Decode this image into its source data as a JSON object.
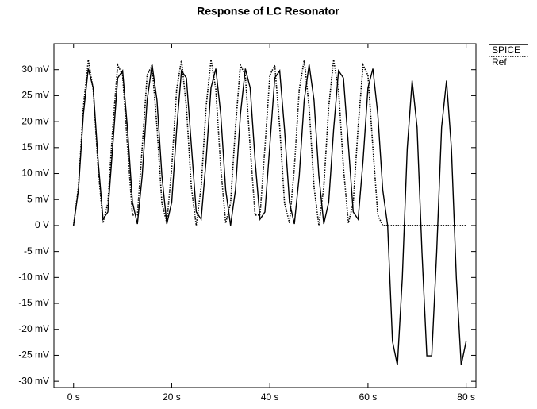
{
  "chart_data": {
    "type": "line",
    "title": "Response of LC Resonator",
    "x": [
      0,
      1,
      2,
      3,
      4,
      5,
      6,
      7,
      8,
      9,
      10,
      11,
      12,
      13,
      14,
      15,
      16,
      17,
      18,
      19,
      20,
      21,
      22,
      23,
      24,
      25,
      26,
      27,
      28,
      29,
      30,
      31,
      32,
      33,
      34,
      35,
      36,
      37,
      38,
      39,
      40,
      41,
      42,
      43,
      44,
      45,
      46,
      47,
      48,
      49,
      50,
      51,
      52,
      53,
      54,
      55,
      56,
      57,
      58,
      59,
      60,
      61,
      62,
      63,
      64,
      65,
      66,
      67,
      68,
      69,
      70,
      71,
      72,
      73,
      74,
      75,
      76,
      77,
      78,
      79,
      80
    ],
    "series": [
      {
        "name": "SPICE",
        "color": "#000000",
        "dash": false,
        "values": [
          0,
          6.9,
          21.4,
          30.2,
          26.5,
          12.5,
          1.2,
          2.6,
          15.5,
          28.4,
          29.8,
          18.5,
          4.5,
          0.3,
          9.6,
          24.1,
          31,
          24.1,
          9.6,
          0.3,
          4.5,
          18.5,
          29.8,
          28.4,
          15.5,
          2.6,
          1.2,
          12.5,
          26.5,
          30.2,
          21.4,
          6.9,
          0,
          6.9,
          21.4,
          30.2,
          26.5,
          12.5,
          1.2,
          2.6,
          15.5,
          28.4,
          29.8,
          18.5,
          4.5,
          0.3,
          9.6,
          24.1,
          31,
          24.1,
          9.6,
          0.3,
          4.5,
          18.5,
          29.8,
          28.4,
          15.5,
          2.6,
          1.2,
          12.5,
          26.5,
          30.2,
          21.4,
          6.9,
          0,
          -22.3,
          -26.9,
          -10.1,
          14.8,
          27.9,
          18.9,
          -5.2,
          -25.1,
          -25.1,
          -5.2,
          18.9,
          27.9,
          14.8,
          -10.1,
          -26.9,
          -22.3
        ]
      },
      {
        "name": "Ref",
        "color": "#000000",
        "dash": true,
        "values": [
          0,
          7.4,
          22.8,
          31.9,
          26.2,
          11.1,
          0.5,
          4.3,
          19.0,
          30.9,
          28.9,
          15.0,
          2.0,
          2.0,
          15.0,
          28.9,
          30.9,
          19.0,
          4.3,
          0.5,
          11.1,
          26.2,
          31.9,
          22.8,
          7.4,
          0,
          7.4,
          22.8,
          31.9,
          26.2,
          11.1,
          0.5,
          4.3,
          19.0,
          30.9,
          28.9,
          15.0,
          2.0,
          2.0,
          15.0,
          28.9,
          30.9,
          19.0,
          4.3,
          0.5,
          11.1,
          26.2,
          31.9,
          22.8,
          7.4,
          0,
          7.4,
          22.8,
          31.9,
          26.2,
          11.1,
          0.5,
          4.3,
          19.0,
          30.9,
          28.9,
          15.0,
          2.0,
          0,
          0,
          0,
          0,
          0,
          0,
          0,
          0,
          0,
          0,
          0,
          0,
          0,
          0,
          0,
          0,
          0,
          0
        ]
      }
    ],
    "xlim": [
      -4,
      82
    ],
    "ylim": [
      -31.2,
      35
    ],
    "xticks": [
      {
        "value": 0,
        "label": "0 s"
      },
      {
        "value": 20,
        "label": "20 s"
      },
      {
        "value": 40,
        "label": "40 s"
      },
      {
        "value": 60,
        "label": "60 s"
      },
      {
        "value": 80,
        "label": "80 s"
      }
    ],
    "yticks": [
      {
        "value": 30,
        "label": "30 mV"
      },
      {
        "value": 25,
        "label": "25 mV"
      },
      {
        "value": 20,
        "label": "20 mV"
      },
      {
        "value": 15,
        "label": "15 mV"
      },
      {
        "value": 10,
        "label": "10 mV"
      },
      {
        "value": 5,
        "label": "5 mV"
      },
      {
        "value": 0,
        "label": "0 V"
      },
      {
        "value": -5,
        "label": "-5 mV"
      },
      {
        "value": -10,
        "label": "-10 mV"
      },
      {
        "value": -15,
        "label": "-15 mV"
      },
      {
        "value": -20,
        "label": "-20 mV"
      },
      {
        "value": -25,
        "label": "-25 mV"
      },
      {
        "value": -30,
        "label": "-30 mV"
      }
    ],
    "legend": "top-right"
  }
}
